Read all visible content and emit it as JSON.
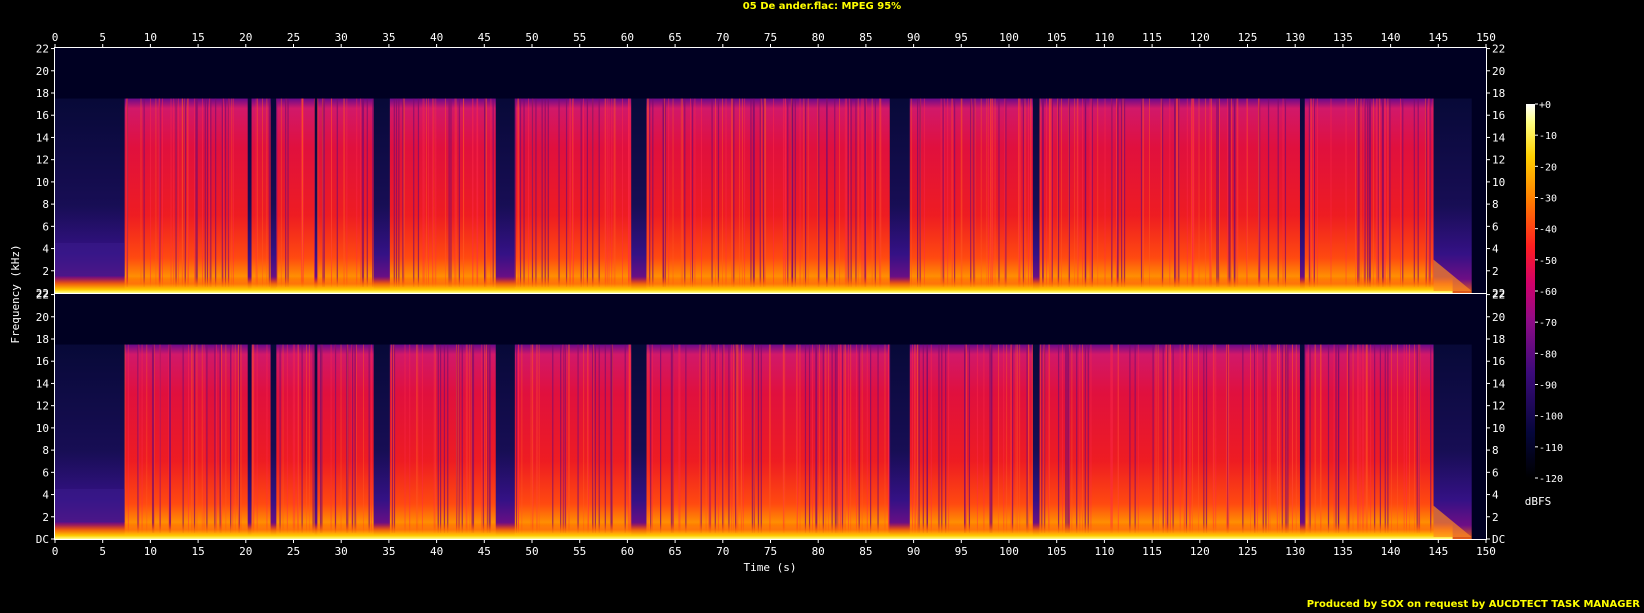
{
  "title": "05 De ander.flac: MPEG 95%",
  "footer": "Produced by SOX on request by AUCDTECT TASK MANAGER",
  "chart_data": {
    "type": "heatmap",
    "title": "05 De ander.flac: MPEG 95%",
    "xlabel": "Time (s)",
    "ylabel": "Frequency (kHz)",
    "xlim": [
      0,
      150
    ],
    "ylim_khz": [
      0,
      22.05
    ],
    "x_ticks": [
      0,
      5,
      10,
      15,
      20,
      25,
      30,
      35,
      40,
      45,
      50,
      55,
      60,
      65,
      70,
      75,
      80,
      85,
      90,
      95,
      100,
      105,
      110,
      115,
      120,
      125,
      130,
      135,
      140,
      145,
      150
    ],
    "y_ticks": [
      {
        "value": 0,
        "label": "DC"
      },
      {
        "value": 2,
        "label": "2"
      },
      {
        "value": 4,
        "label": "4"
      },
      {
        "value": 6,
        "label": "6"
      },
      {
        "value": 8,
        "label": "8"
      },
      {
        "value": 10,
        "label": "10"
      },
      {
        "value": 12,
        "label": "12"
      },
      {
        "value": 14,
        "label": "14"
      },
      {
        "value": 16,
        "label": "16"
      },
      {
        "value": 18,
        "label": "18"
      },
      {
        "value": 20,
        "label": "20"
      },
      {
        "value": 22,
        "label": "22"
      }
    ],
    "channels": 2,
    "track_end_s": 148.5,
    "music_start_s": 7.3,
    "lowpass_cutoff_khz": 17.5,
    "loud_segments_s": [
      [
        7.3,
        20.2
      ],
      [
        20.6,
        22.6
      ],
      [
        23.2,
        27.2
      ],
      [
        27.5,
        33.4
      ],
      [
        35.1,
        46.2
      ],
      [
        48.2,
        60.4
      ],
      [
        62.0,
        87.5
      ],
      [
        89.6,
        102.5
      ],
      [
        103.2,
        130.5
      ],
      [
        131.0,
        144.5
      ]
    ],
    "colorbar": {
      "label": "dBFS",
      "ticks": [
        {
          "value": 0,
          "label": "+0"
        },
        {
          "value": -10,
          "label": "-10"
        },
        {
          "value": -20,
          "label": "-20"
        },
        {
          "value": -30,
          "label": "-30"
        },
        {
          "value": -40,
          "label": "-40"
        },
        {
          "value": -50,
          "label": "-50"
        },
        {
          "value": -60,
          "label": "-60"
        },
        {
          "value": -70,
          "label": "-70"
        },
        {
          "value": -80,
          "label": "-80"
        },
        {
          "value": -90,
          "label": "-90"
        },
        {
          "value": -100,
          "label": "-100"
        },
        {
          "value": -110,
          "label": "-110"
        },
        {
          "value": -120,
          "label": "-120"
        }
      ],
      "range_db": [
        -120,
        0
      ]
    },
    "colors": {
      "background": "#000000",
      "title_text": "#ffff00",
      "axis_text": "#ffffff",
      "low": "#000033",
      "mid": "#e80070",
      "high": "#ffffff"
    }
  }
}
